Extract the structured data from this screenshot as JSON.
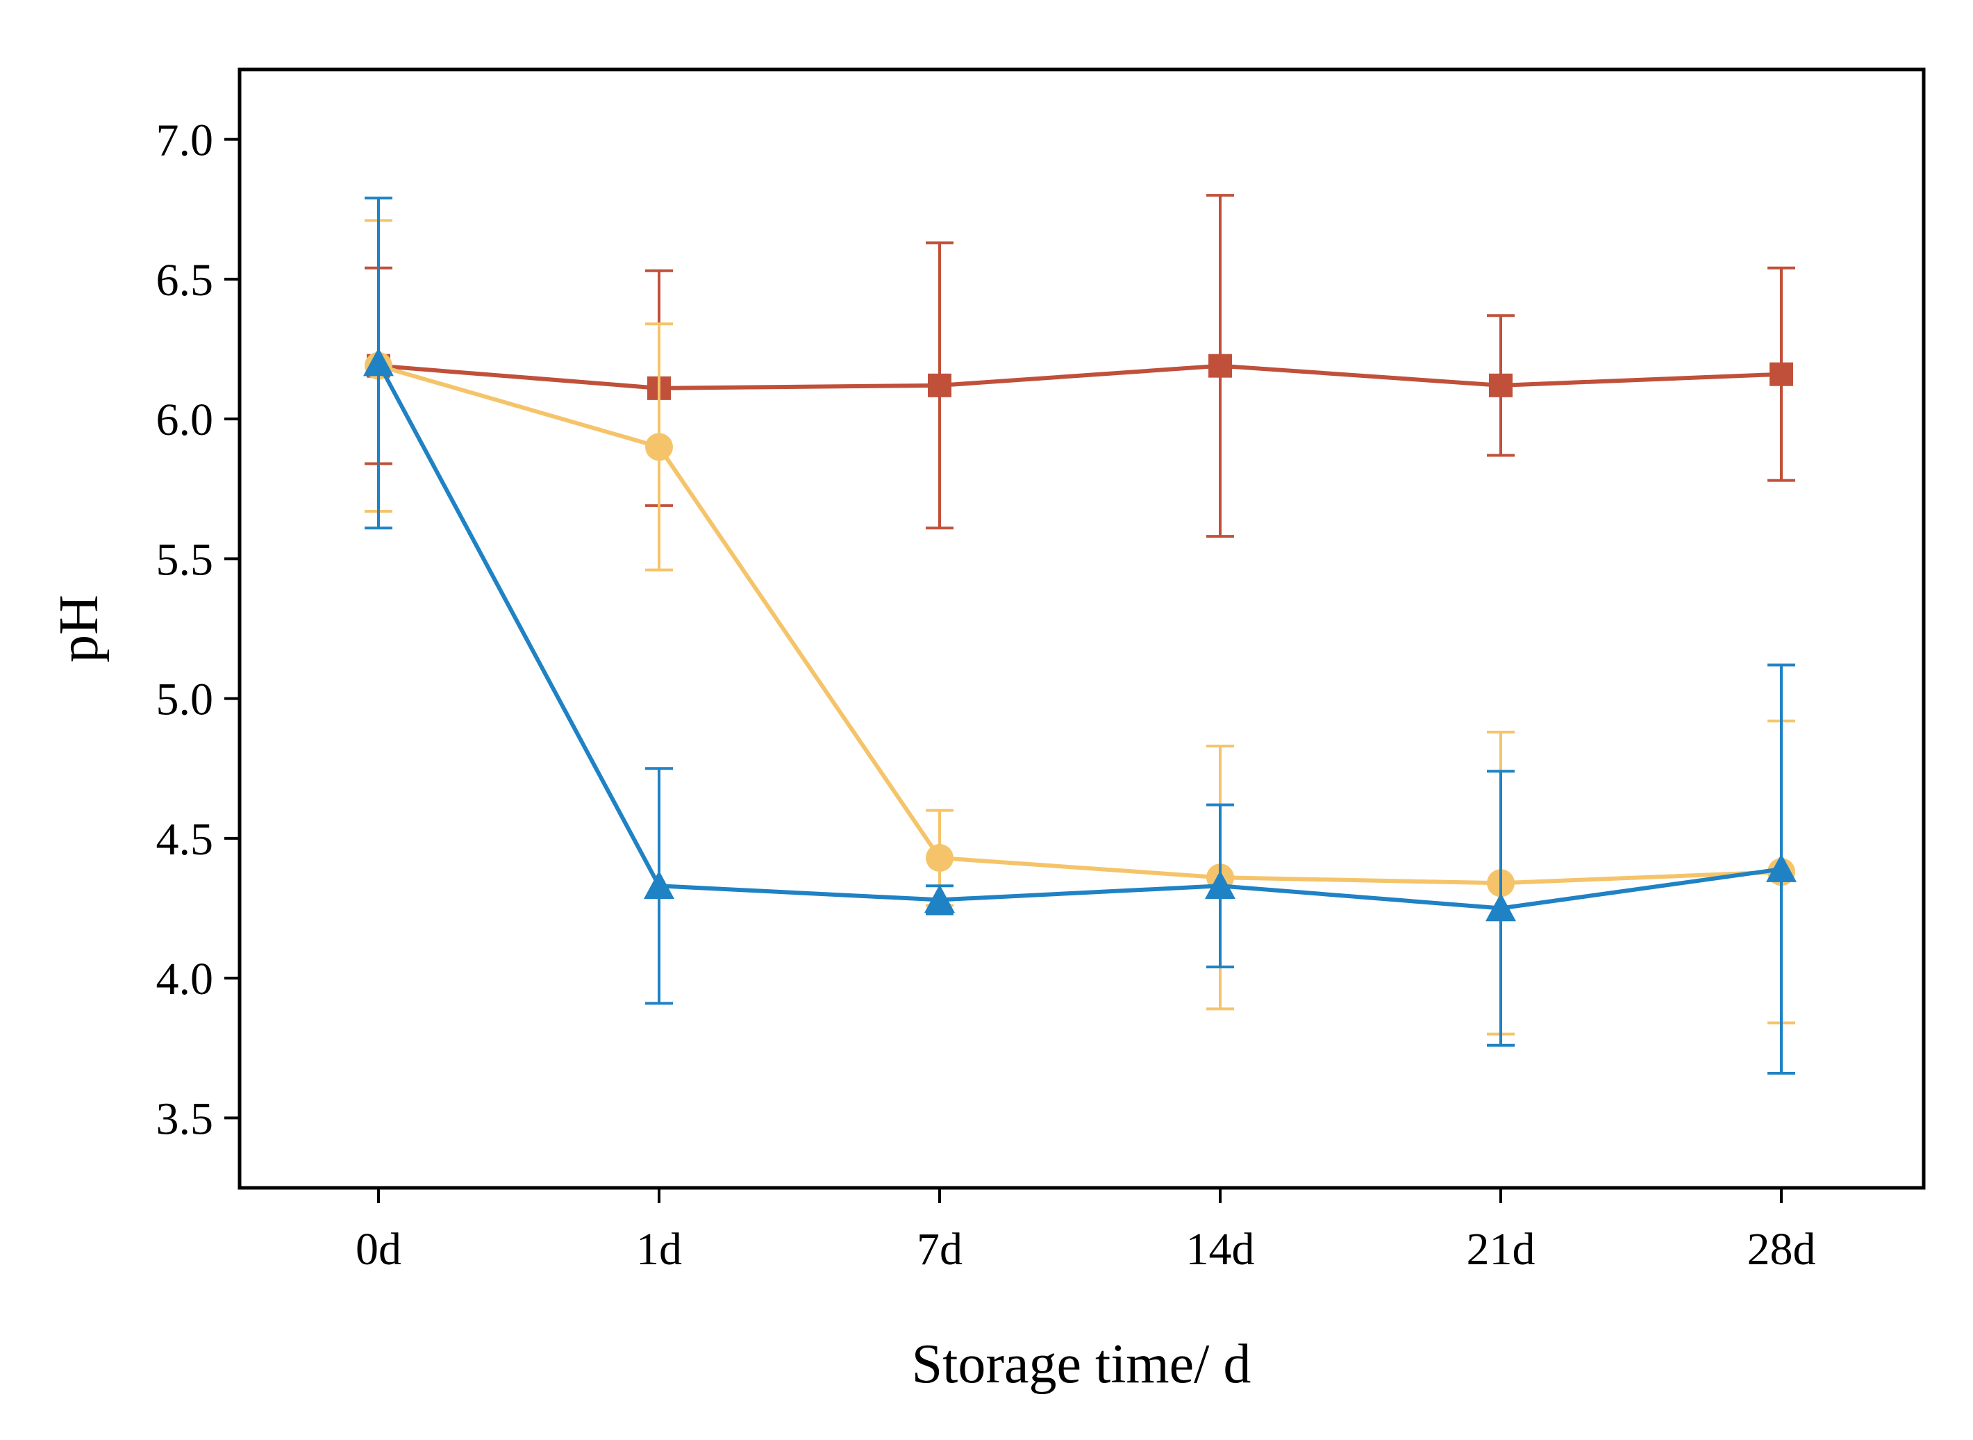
{
  "chart_data": {
    "type": "line",
    "title": "",
    "xlabel": "Storage time/ d",
    "ylabel": "pH",
    "categories": [
      "0d",
      "1d",
      "7d",
      "14d",
      "21d",
      "28d"
    ],
    "yticks": [
      "3.5",
      "4.0",
      "4.5",
      "5.0",
      "5.5",
      "6.0",
      "6.5",
      "7.0"
    ],
    "ylim": [
      3.25,
      7.25
    ],
    "grid": false,
    "legend": "none",
    "series": [
      {
        "color": "#c0503a",
        "marker": "square",
        "values": [
          6.19,
          6.11,
          6.12,
          6.19,
          6.12,
          6.16
        ],
        "errors": [
          0.35,
          0.42,
          0.51,
          0.61,
          0.25,
          0.38
        ]
      },
      {
        "color": "#f5c46a",
        "marker": "circle",
        "values": [
          6.19,
          5.9,
          4.43,
          4.36,
          4.34,
          4.38
        ],
        "errors": [
          0.52,
          0.44,
          0.17,
          0.47,
          0.54,
          0.54
        ]
      },
      {
        "color": "#1f82c4",
        "marker": "triangle",
        "values": [
          6.2,
          4.33,
          4.28,
          4.33,
          4.25,
          4.39
        ],
        "errors": [
          0.59,
          0.42,
          0.05,
          0.29,
          0.49,
          0.73
        ]
      }
    ]
  }
}
